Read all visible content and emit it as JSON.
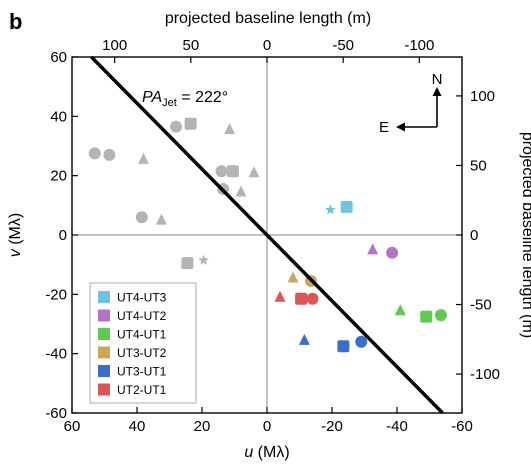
{
  "panel_label": "b",
  "chart_data": {
    "type": "scatter",
    "title": "",
    "xlabel": "u (Mλ)",
    "xlabel_parts": {
      "var": "u",
      "unit": " (Mλ)"
    },
    "ylabel": "v (Mλ)",
    "ylabel_parts": {
      "var": "v",
      "unit": " (Mλ)"
    },
    "top_xlabel": "projected baseline length (m)",
    "right_ylabel": "projected baseline length (m)",
    "xlim": [
      60,
      -60
    ],
    "ylim": [
      -60,
      60
    ],
    "secondary_xlim": [
      128,
      -128
    ],
    "secondary_ylim": [
      -128,
      128
    ],
    "x_ticks": [
      60,
      40,
      20,
      0,
      -20,
      -40,
      -60
    ],
    "x_tick_labels": [
      "60",
      "40",
      "20",
      "0",
      "-20",
      "-40",
      "-60"
    ],
    "y_ticks": [
      -60,
      -40,
      -20,
      0,
      20,
      40,
      60
    ],
    "y_tick_labels": [
      "-60",
      "-40",
      "-20",
      "0",
      "20",
      "40",
      "60"
    ],
    "top_ticks": [
      100,
      50,
      0,
      -50,
      -100
    ],
    "top_tick_labels": [
      "100",
      "50",
      "0",
      "-50",
      "-100"
    ],
    "right_ticks": [
      -100,
      -50,
      0,
      50,
      100
    ],
    "right_tick_labels": [
      "-100",
      "-50",
      "0",
      "50",
      "100"
    ],
    "zero_lines": true,
    "jet_line": {
      "slope_v_per_u": 1.1106,
      "color": "#000000",
      "label_main": "PA",
      "label_sub": "Jet",
      "label_value": " = 222°"
    },
    "compass": {
      "north_label": "N",
      "east_label": "E"
    },
    "legend_position": "lower-left",
    "series": [
      {
        "name": "UT4-UT3",
        "color": "#6ec5e0",
        "points": [
          {
            "u": -24.5,
            "v": 9.5,
            "marker": "square"
          },
          {
            "u": -19.5,
            "v": 8.5,
            "marker": "star"
          }
        ]
      },
      {
        "name": "UT4-UT2",
        "color": "#b672c9",
        "points": [
          {
            "u": -38.5,
            "v": -6,
            "marker": "circle"
          },
          {
            "u": -32.5,
            "v": -5,
            "marker": "triangle"
          }
        ]
      },
      {
        "name": "UT4-UT1",
        "color": "#5ccc4f",
        "points": [
          {
            "u": -49,
            "v": -27.5,
            "marker": "square"
          },
          {
            "u": -53.5,
            "v": -27,
            "marker": "circle"
          },
          {
            "u": -41,
            "v": -25.5,
            "marker": "triangle"
          }
        ]
      },
      {
        "name": "UT3-UT2",
        "color": "#c9a851",
        "points": [
          {
            "u": -13.5,
            "v": -15.5,
            "marker": "circle"
          },
          {
            "u": -8,
            "v": -14.5,
            "marker": "triangle"
          }
        ]
      },
      {
        "name": "UT3-UT1",
        "color": "#3a6fcf",
        "points": [
          {
            "u": -23.5,
            "v": -37.5,
            "marker": "square"
          },
          {
            "u": -29,
            "v": -36,
            "marker": "circle"
          },
          {
            "u": -11.5,
            "v": -35.5,
            "marker": "triangle"
          }
        ]
      },
      {
        "name": "UT2-UT1",
        "color": "#de5555",
        "points": [
          {
            "u": -10.5,
            "v": -21.5,
            "marker": "square"
          },
          {
            "u": -14,
            "v": -21.5,
            "marker": "circle"
          },
          {
            "u": -4,
            "v": -21,
            "marker": "triangle"
          }
        ]
      }
    ],
    "mirror_points": {
      "color": "#b4b4b4",
      "points": [
        {
          "u": 53,
          "v": 27.5,
          "marker": "circle"
        },
        {
          "u": 48.5,
          "v": 27,
          "marker": "circle"
        },
        {
          "u": 38,
          "v": 25.5,
          "marker": "triangle"
        },
        {
          "u": 28,
          "v": 36.5,
          "marker": "circle"
        },
        {
          "u": 23.5,
          "v": 37.5,
          "marker": "square"
        },
        {
          "u": 11.5,
          "v": 35.5,
          "marker": "triangle"
        },
        {
          "u": 14,
          "v": 21.5,
          "marker": "circle"
        },
        {
          "u": 10.5,
          "v": 21.5,
          "marker": "square"
        },
        {
          "u": 4,
          "v": 21,
          "marker": "triangle"
        },
        {
          "u": 13.5,
          "v": 15.5,
          "marker": "circle"
        },
        {
          "u": 8,
          "v": 14.5,
          "marker": "triangle"
        },
        {
          "u": 38.5,
          "v": 6,
          "marker": "circle"
        },
        {
          "u": 32.5,
          "v": 5,
          "marker": "triangle"
        },
        {
          "u": 24.5,
          "v": -9.5,
          "marker": "square"
        },
        {
          "u": 19.5,
          "v": -8.5,
          "marker": "star"
        }
      ]
    }
  }
}
